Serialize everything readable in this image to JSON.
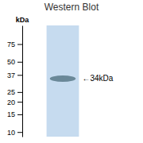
{
  "chart_data": {
    "type": "blot",
    "title": "Western Blot",
    "ylabel": "kDa",
    "values": [
      34
    ],
    "color": "#6a8898",
    "annotations": [
      "←34kDa"
    ],
    "log": "y",
    "ylim": [
      9,
      115
    ],
    "yticks": [
      75,
      50,
      37,
      25,
      20,
      15,
      10
    ],
    "grid": false,
    "tick_labels": "y"
  }
}
